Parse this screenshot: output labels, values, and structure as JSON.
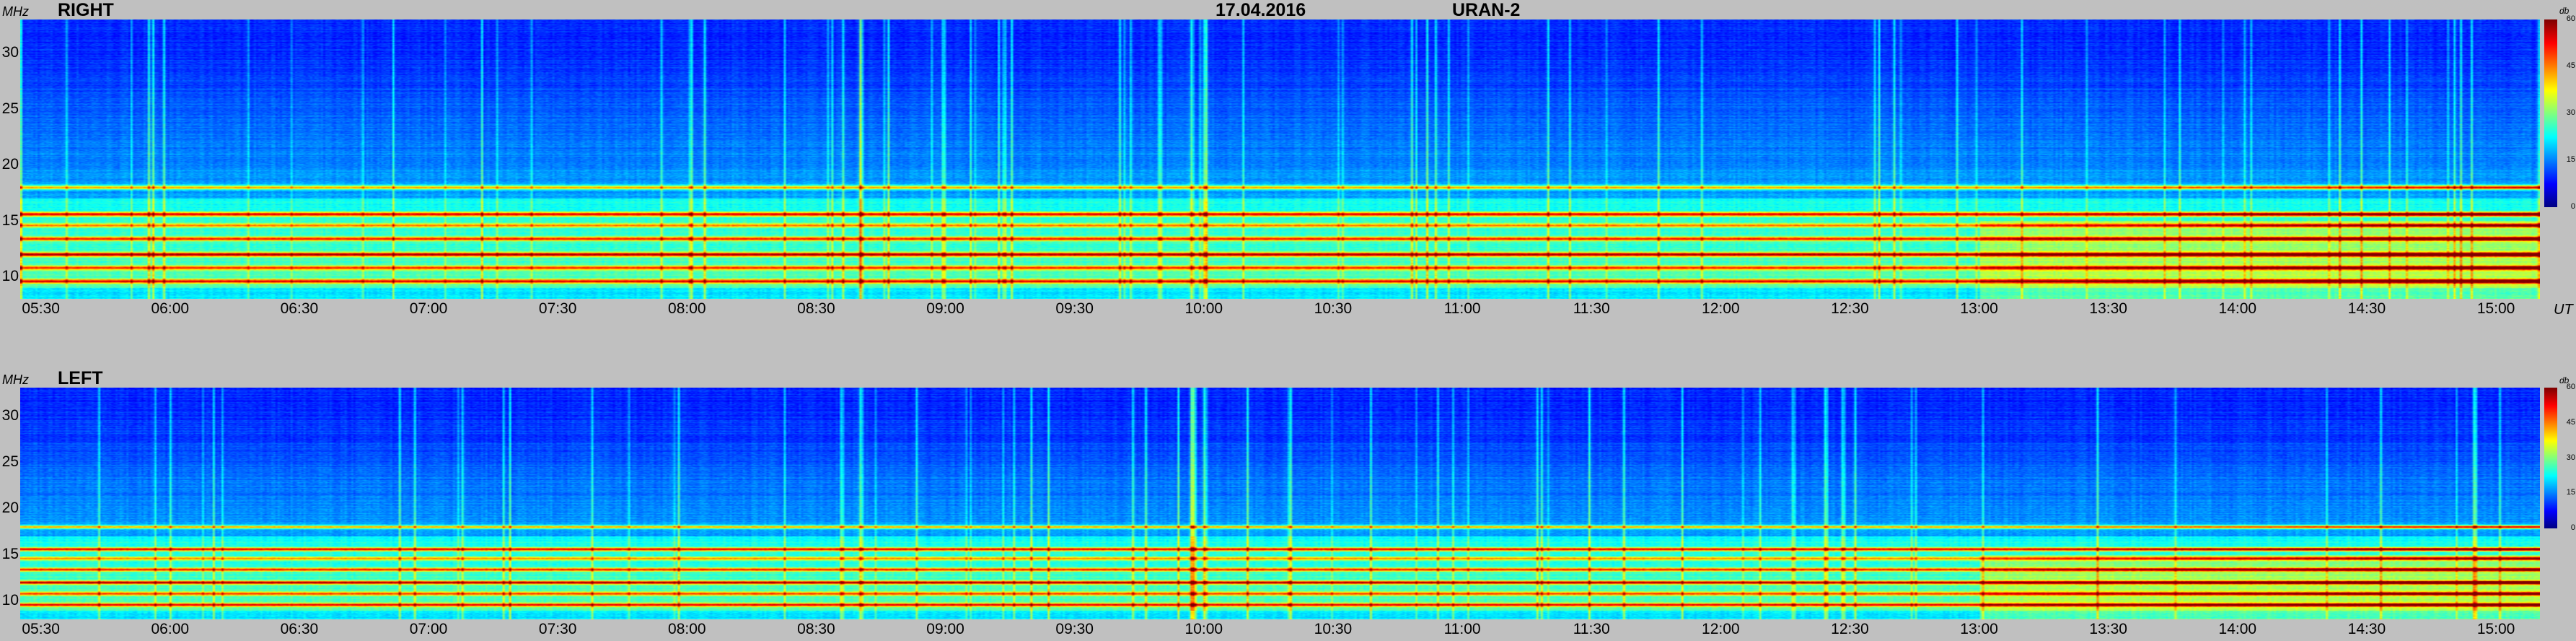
{
  "header": {
    "date": "17.04.2016",
    "instrument": "URAN-2"
  },
  "units": {
    "freq": "MHz",
    "time": "UT",
    "colorbar": "db"
  },
  "colors": {
    "background": "#c0c0c0",
    "colormap": [
      "#0000ff",
      "#00c0ff",
      "#00ffff",
      "#ffff00",
      "#ff0000",
      "#800000"
    ]
  },
  "chart_data": [
    {
      "type": "heatmap",
      "title": "RIGHT",
      "ylabel": "MHz",
      "xlabel": "UT",
      "y_ticks": [
        "30",
        "25",
        "20",
        "15",
        "10"
      ],
      "y_values": [
        30,
        25,
        20,
        15,
        10
      ],
      "ylim": [
        8,
        33
      ],
      "x_ticks": [
        "05:30",
        "06:00",
        "06:30",
        "07:00",
        "07:30",
        "08:00",
        "08:30",
        "09:00",
        "09:30",
        "10:00",
        "10:30",
        "11:00",
        "11:30",
        "12:00",
        "12:30",
        "13:00",
        "13:30",
        "14:00",
        "14:30",
        "15:00"
      ],
      "x_hours": [
        5.5,
        6.0,
        6.5,
        7.0,
        7.5,
        8.0,
        8.5,
        9.0,
        9.5,
        10.0,
        10.5,
        11.0,
        11.5,
        12.0,
        12.5,
        13.0,
        13.5,
        14.0,
        14.5,
        15.0
      ],
      "xlim_hours": [
        5.42,
        15.17
      ],
      "colorbar": {
        "label": "db",
        "ticks": [
          "60",
          "45",
          "30",
          "15",
          "0"
        ],
        "values": [
          60,
          45,
          30,
          15,
          0
        ]
      },
      "bands_mhz": [
        {
          "f": 18.0,
          "db": 38
        },
        {
          "f": 15.6,
          "db": 45
        },
        {
          "f": 14.6,
          "db": 35
        },
        {
          "f": 13.4,
          "db": 42
        },
        {
          "f": 12.0,
          "db": 48
        },
        {
          "f": 10.8,
          "db": 40
        },
        {
          "f": 9.6,
          "db": 44
        }
      ],
      "bursts_hours": [
        8.67,
        9.95,
        10.0
      ]
    },
    {
      "type": "heatmap",
      "title": "LEFT",
      "ylabel": "MHz",
      "y_ticks": [
        "30",
        "25",
        "20",
        "15",
        "10"
      ],
      "y_values": [
        30,
        25,
        20,
        15,
        10
      ],
      "ylim": [
        8,
        33
      ],
      "x_ticks": [
        "05:30",
        "06:00",
        "06:30",
        "07:00",
        "07:30",
        "08:00",
        "08:30",
        "09:00",
        "09:30",
        "10:00",
        "10:30",
        "11:00",
        "11:30",
        "12:00",
        "12:30",
        "13:00",
        "13:30",
        "14:00",
        "14:30",
        "15:00"
      ],
      "x_hours": [
        5.5,
        6.0,
        6.5,
        7.0,
        7.5,
        8.0,
        8.5,
        9.0,
        9.5,
        10.0,
        10.5,
        11.0,
        11.5,
        12.0,
        12.5,
        13.0,
        13.5,
        14.0,
        14.5,
        15.0
      ],
      "xlim_hours": [
        5.42,
        15.17
      ],
      "colorbar": {
        "label": "db",
        "ticks": [
          "60",
          "45",
          "30",
          "15",
          "0"
        ],
        "values": [
          60,
          45,
          30,
          15,
          0
        ]
      },
      "bands_mhz": [
        {
          "f": 18.0,
          "db": 38
        },
        {
          "f": 15.6,
          "db": 45
        },
        {
          "f": 14.6,
          "db": 35
        },
        {
          "f": 13.4,
          "db": 42
        },
        {
          "f": 12.0,
          "db": 48
        },
        {
          "f": 10.8,
          "db": 40
        },
        {
          "f": 9.6,
          "db": 44
        }
      ],
      "bursts_hours": [
        8.67,
        9.95,
        10.0
      ]
    }
  ]
}
